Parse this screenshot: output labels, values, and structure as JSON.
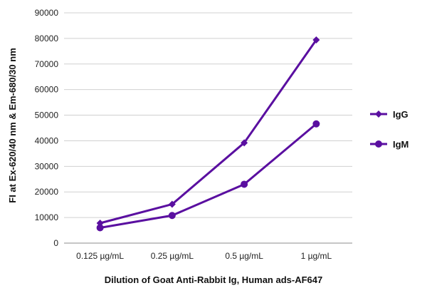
{
  "chart_data": {
    "type": "line",
    "title": "",
    "xlabel": "Dilution of Goat Anti-Rabbit Ig, Human ads-AF647",
    "ylabel": "FI at Ex-620/40 nm & Em-680/30 nm",
    "categories": [
      "0.125 µg/mL",
      "0.25 µg/mL",
      "0.5 µg/mL",
      "1 µg/mL"
    ],
    "ylim": [
      0,
      90000
    ],
    "yticks": [
      "0",
      "10000",
      "20000",
      "30000",
      "40000",
      "50000",
      "60000",
      "70000",
      "80000",
      "90000"
    ],
    "grid": true,
    "legend_position": "right",
    "series": [
      {
        "name": "IgG",
        "marker": "diamond",
        "color": "#5a0fa0",
        "values": [
          7800,
          15200,
          39200,
          79400
        ]
      },
      {
        "name": "IgM",
        "marker": "circle",
        "color": "#5a0fa0",
        "values": [
          6000,
          10800,
          23000,
          46600
        ]
      }
    ]
  }
}
